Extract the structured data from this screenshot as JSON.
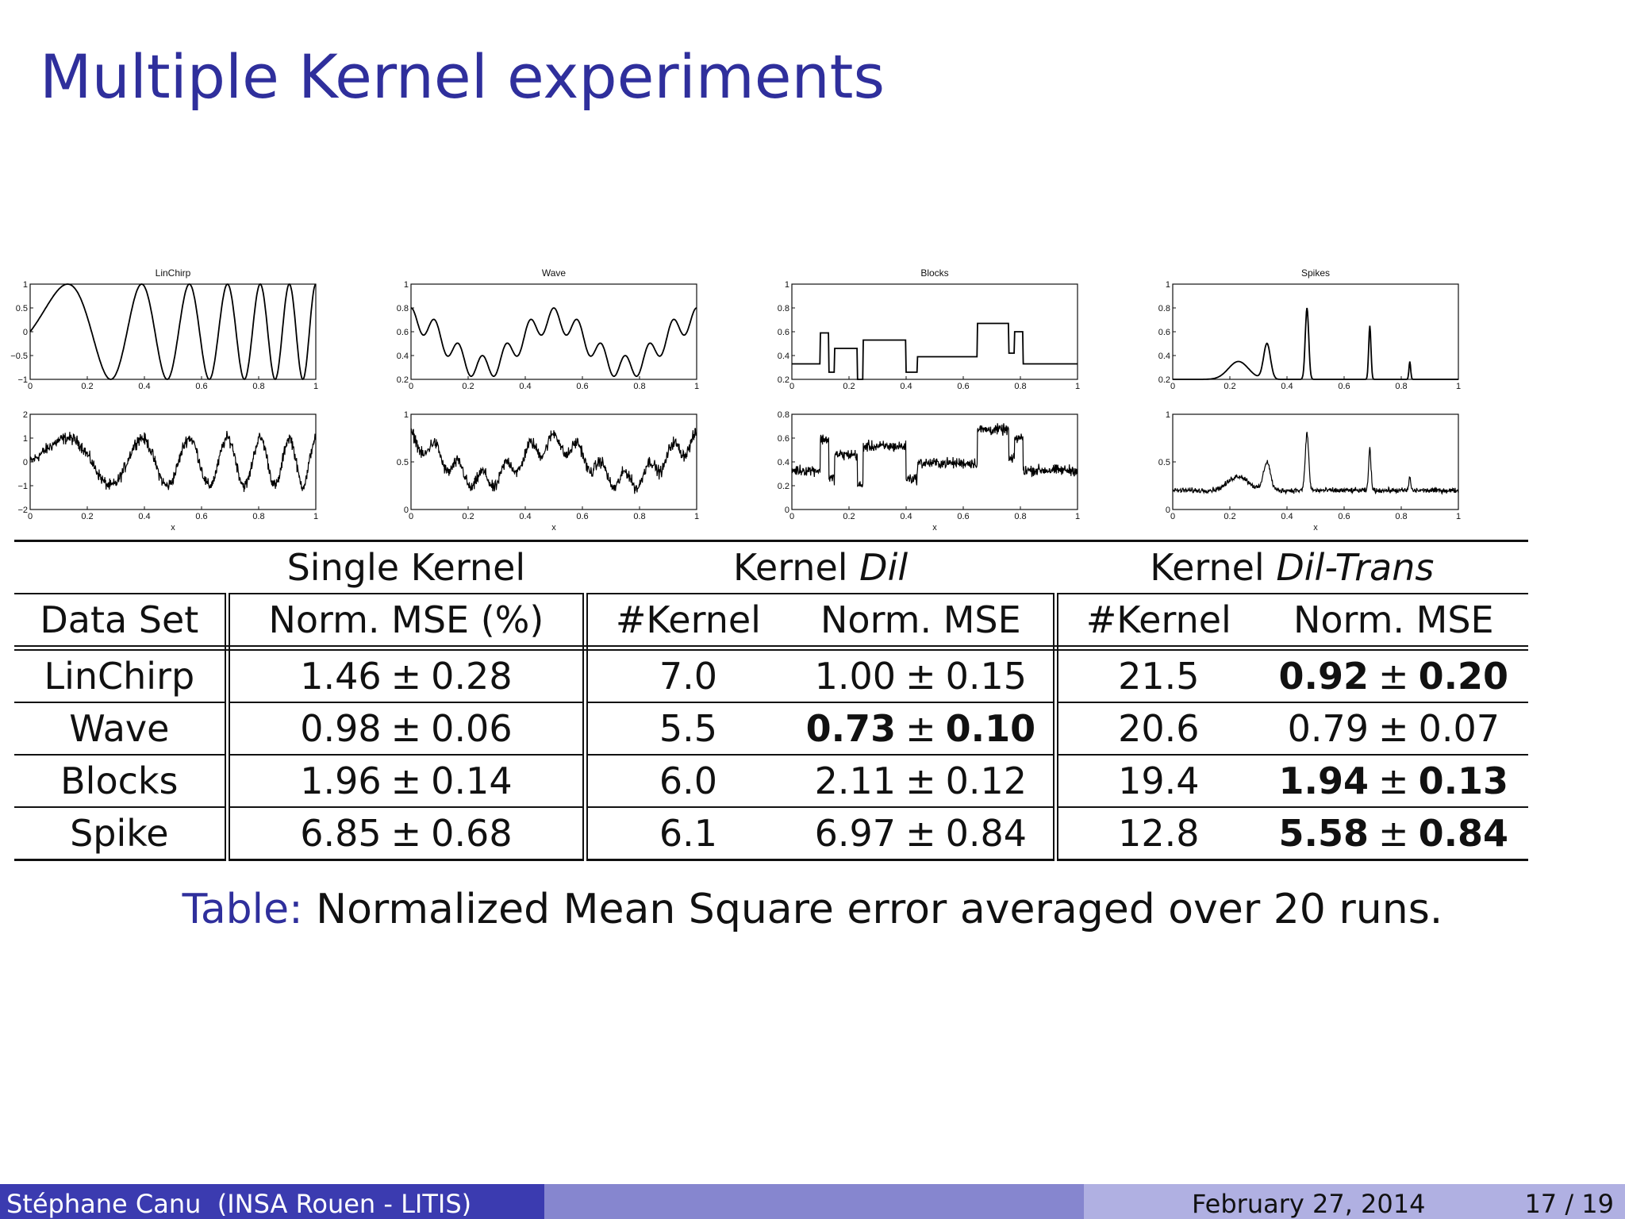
{
  "slide": {
    "title": "Multiple Kernel experiments"
  },
  "plots": [
    {
      "name": "LinChirp",
      "top": {
        "title": "LinChirp",
        "yticks": [
          "1",
          "0.5",
          "0",
          "−0.5",
          "−1"
        ],
        "xticks": [
          "0",
          "0.2",
          "0.4",
          "0.6",
          "0.8",
          "1"
        ]
      },
      "bottom": {
        "yticks": [
          "2",
          "1",
          "0",
          "−1",
          "−2"
        ],
        "xticks": [
          "0",
          "0.2",
          "0.4",
          "0.6",
          "0.8",
          "1"
        ],
        "xlabel": "x"
      }
    },
    {
      "name": "Wave",
      "top": {
        "title": "Wave",
        "yticks": [
          "1",
          "0.8",
          "0.6",
          "0.4",
          "0.2"
        ],
        "xticks": [
          "0",
          "0.2",
          "0.4",
          "0.6",
          "0.8",
          "1"
        ]
      },
      "bottom": {
        "yticks": [
          "1",
          "0.5",
          "0"
        ],
        "xticks": [
          "0",
          "0.2",
          "0.4",
          "0.6",
          "0.8",
          "1"
        ],
        "xlabel": "x"
      }
    },
    {
      "name": "Blocks",
      "top": {
        "title": "Blocks",
        "yticks": [
          "1",
          "0.8",
          "0.6",
          "0.4",
          "0.2"
        ],
        "xticks": [
          "0",
          "0.2",
          "0.4",
          "0.6",
          "0.8",
          "1"
        ]
      },
      "bottom": {
        "yticks": [
          "0.8",
          "0.6",
          "0.4",
          "0.2",
          "0"
        ],
        "xticks": [
          "0",
          "0.2",
          "0.4",
          "0.6",
          "0.8",
          "1"
        ],
        "xlabel": "x"
      }
    },
    {
      "name": "Spikes",
      "top": {
        "title": "Spikes",
        "yticks": [
          "1",
          "0.8",
          "0.6",
          "0.4",
          "0.2"
        ],
        "xticks": [
          "0",
          "0.2",
          "0.4",
          "0.6",
          "0.8",
          "1"
        ]
      },
      "bottom": {
        "yticks": [
          "1",
          "0.5",
          "0"
        ],
        "xticks": [
          "0",
          "0.2",
          "0.4",
          "0.6",
          "0.8",
          "1"
        ],
        "xlabel": "x"
      }
    }
  ],
  "table": {
    "groups": {
      "single": "Single Kernel",
      "dil_prefix": "Kernel ",
      "dil_em": "Dil",
      "diltrans_prefix": "Kernel ",
      "diltrans_em": "Dil-Trans"
    },
    "headers": {
      "dataset": "Data Set",
      "single_mse": "Norm. MSE (%)",
      "dil_kernel": "#Kernel",
      "dil_mse": "Norm. MSE",
      "dt_kernel": "#Kernel",
      "dt_mse": "Norm. MSE"
    },
    "rows": [
      {
        "name": "LinChirp",
        "single": {
          "m": "1.46",
          "s": "0.28"
        },
        "dil_k": "7.0",
        "dil": {
          "m": "1.00",
          "s": "0.15"
        },
        "dt_k": "21.5",
        "dt": {
          "m": "0.92",
          "s": "0.20"
        }
      },
      {
        "name": "Wave",
        "single": {
          "m": "0.98",
          "s": "0.06"
        },
        "dil_k": "5.5",
        "dil": {
          "m": "0.73",
          "s": "0.10"
        },
        "dt_k": "20.6",
        "dt": {
          "m": "0.79",
          "s": "0.07"
        }
      },
      {
        "name": "Blocks",
        "single": {
          "m": "1.96",
          "s": "0.14"
        },
        "dil_k": "6.0",
        "dil": {
          "m": "2.11",
          "s": "0.12"
        },
        "dt_k": "19.4",
        "dt": {
          "m": "1.94",
          "s": "0.13"
        }
      },
      {
        "name": "Spike",
        "single": {
          "m": "6.85",
          "s": "0.68"
        },
        "dil_k": "6.1",
        "dil": {
          "m": "6.97",
          "s": "0.84"
        },
        "dt_k": "12.8",
        "dt": {
          "m": "5.58",
          "s": "0.84"
        }
      }
    ],
    "pm": "±"
  },
  "caption": {
    "label": "Table:",
    "text": " Normalized Mean Square error averaged over 20 runs."
  },
  "footer": {
    "author": "Stéphane Canu  (INSA Rouen - LITIS)",
    "date": "February 27, 2014",
    "page": "17 / 19"
  }
}
